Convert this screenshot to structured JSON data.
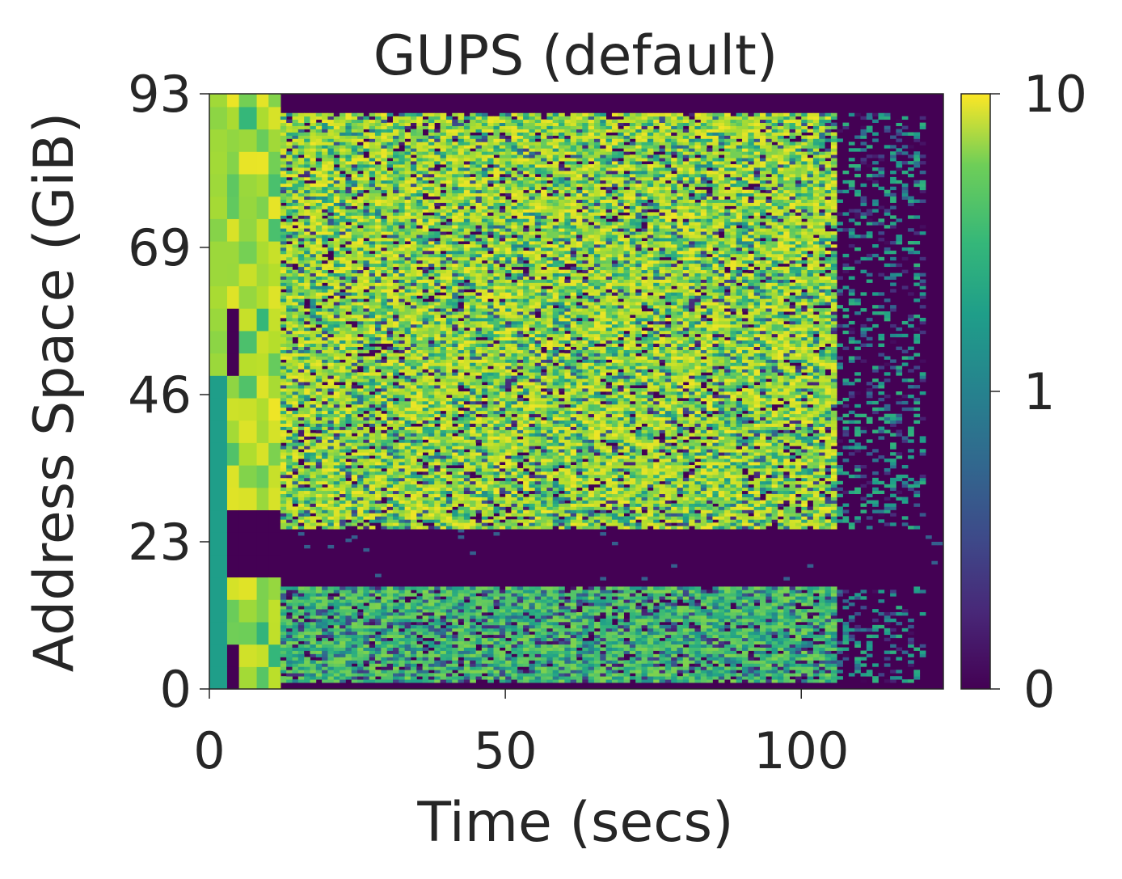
{
  "chart_data": {
    "type": "heatmap",
    "title": "GUPS (default)",
    "xlabel": "Time (secs)",
    "ylabel": "Address Space (GiB)",
    "xlim": [
      0,
      124
    ],
    "ylim": [
      0,
      93
    ],
    "xticks": [
      "0",
      "50",
      "100"
    ],
    "xtick_values": [
      0,
      50,
      100
    ],
    "yticks": [
      "0",
      "23",
      "46",
      "69",
      "93"
    ],
    "ytick_values": [
      0,
      23,
      46,
      69,
      93
    ],
    "colormap": "viridis",
    "color_scale": "symlog",
    "colorbar_range": [
      0,
      10
    ],
    "colorbar_ticks": [
      "0",
      "1",
      "10"
    ],
    "colorbar_tick_values": [
      0,
      1,
      10
    ],
    "description_of_data": "Memory access intensity over time and address space: hot region roughly 25-90 GiB and 0-17 GiB from ~5 to ~105 s, cold band around 17-25 GiB, activity fades after ~105 s.",
    "time_bin_secs": 1,
    "address_bin_gib": 0.5,
    "active_time_range": [
      0,
      124
    ],
    "hot_regions_gib": [
      [
        25,
        90
      ],
      [
        1,
        16
      ]
    ],
    "cold_band_gib": [
      17,
      25
    ],
    "fade_start_secs": 105
  }
}
